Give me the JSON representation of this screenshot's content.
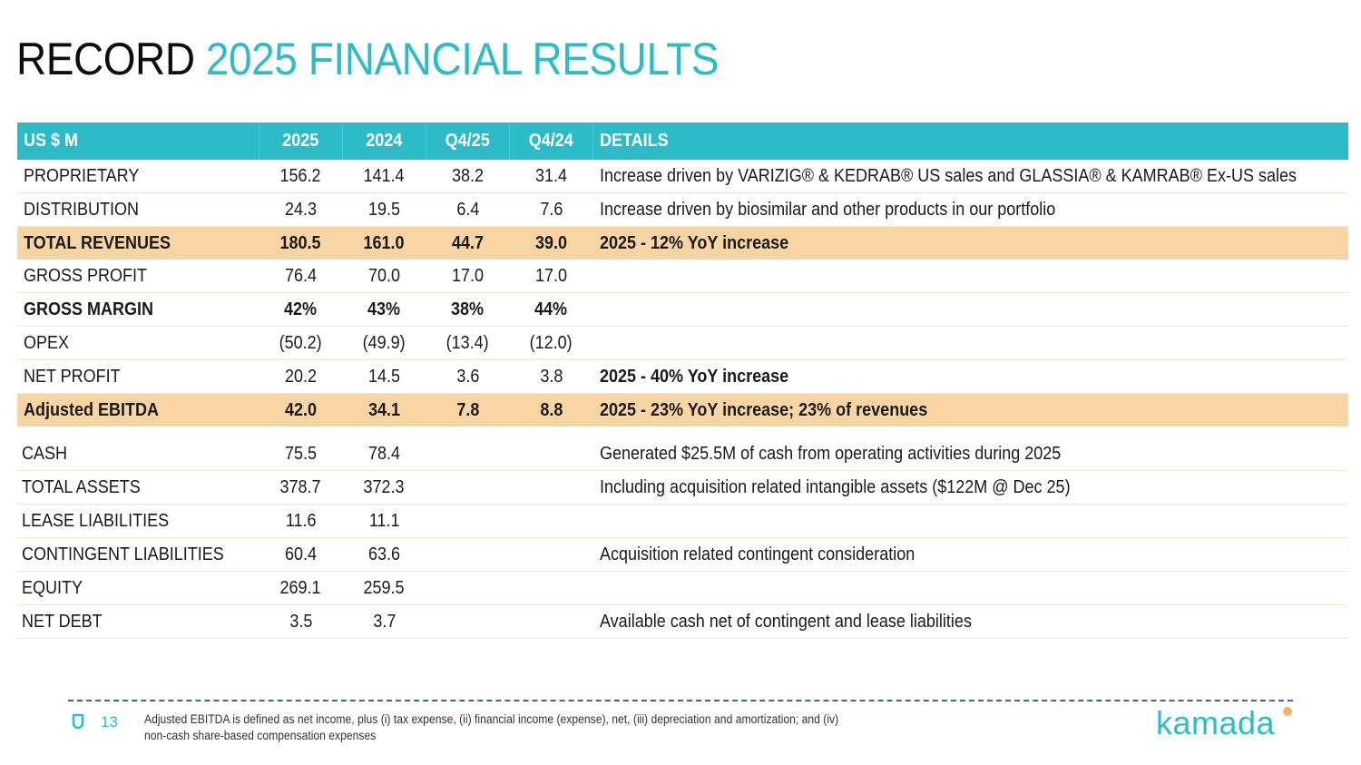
{
  "title": {
    "part1": "RECORD",
    "part2": "2025 FINANCIAL RESULTS"
  },
  "colors": {
    "accent": "#2bbcc8",
    "highlight": "#f8d5a3",
    "logo_dot": "#f3b26a"
  },
  "table": {
    "headers": {
      "label": "US $ M",
      "y2025": "2025",
      "y2024": "2024",
      "q425": "Q4/25",
      "q424": "Q4/24",
      "details": "DETAILS"
    },
    "income_rows": [
      {
        "label": "PROPRIETARY",
        "y2025": "156.2",
        "y2024": "141.4",
        "q425": "38.2",
        "q424": "31.4",
        "details": "Increase driven by VARIZIG® & KEDRAB® US sales and GLASSIA® & KAMRAB® Ex-US sales"
      },
      {
        "label": "DISTRIBUTION",
        "y2025": "24.3",
        "y2024": "19.5",
        "q425": "6.4",
        "q424": "7.6",
        "details": "Increase driven by biosimilar and other products in our portfolio"
      },
      {
        "label": "TOTAL REVENUES",
        "y2025": "180.5",
        "y2024": "161.0",
        "q425": "44.7",
        "q424": "39.0",
        "details": "2025 - 12% YoY increase"
      },
      {
        "label": "GROSS PROFIT",
        "y2025": "76.4",
        "y2024": "70.0",
        "q425": "17.0",
        "q424": "17.0",
        "details": ""
      },
      {
        "label": "GROSS MARGIN",
        "y2025": "42%",
        "y2024": "43%",
        "q425": "38%",
        "q424": "44%",
        "details": ""
      },
      {
        "label": "OPEX",
        "y2025": "(50.2)",
        "y2024": "(49.9)",
        "q425": "(13.4)",
        "q424": "(12.0)",
        "details": ""
      },
      {
        "label": "NET PROFIT",
        "y2025": "20.2",
        "y2024": "14.5",
        "q425": "3.6",
        "q424": "3.8",
        "details": "2025 - 40% YoY increase"
      },
      {
        "label": "Adjusted EBITDA",
        "y2025": "42.0",
        "y2024": "34.1",
        "q425": "7.8",
        "q424": "8.8",
        "details": "2025 - 23% YoY increase; 23% of revenues"
      }
    ],
    "balance_rows": [
      {
        "label": "CASH",
        "y2025": "75.5",
        "y2024": "78.4",
        "details": "Generated $25.5M of cash from operating activities during 2025"
      },
      {
        "label": "TOTAL ASSETS",
        "y2025": "378.7",
        "y2024": "372.3",
        "details": "Including acquisition related intangible assets ($122M @ Dec 25)"
      },
      {
        "label": "LEASE LIABILITIES",
        "y2025": "11.6",
        "y2024": "11.1",
        "details": ""
      },
      {
        "label": "CONTINGENT LIABILITIES",
        "y2025": "60.4",
        "y2024": "63.6",
        "details": "Acquisition related contingent consideration"
      },
      {
        "label": "EQUITY",
        "y2025": "269.1",
        "y2024": "259.5",
        "details": ""
      },
      {
        "label": "NET DEBT",
        "y2025": "3.5",
        "y2024": "3.7",
        "details": "Available cash net of contingent and lease liabilities"
      }
    ]
  },
  "footer": {
    "page_number": "13",
    "footnote_line1": "Adjusted EBITDA is defined as net income, plus (i) tax expense, (ii) financial income (expense), net, (iii) depreciation and amortization; and (iv)",
    "footnote_line2": "non-cash share-based compensation expenses",
    "logo_text": "kamada",
    "page_icon": "kamada-drop-icon"
  }
}
